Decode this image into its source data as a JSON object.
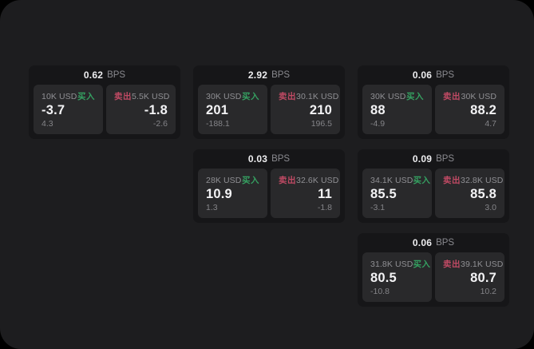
{
  "labels": {
    "bps_suffix": "BPS",
    "buy": "买入",
    "sell": "卖出"
  },
  "colors": {
    "buy": "#35a061",
    "sell": "#c04a64",
    "surface": "#1d1d1f",
    "card": "#161618",
    "panel": "#29292b"
  },
  "cards": [
    {
      "row": 1,
      "col": 1,
      "bps": "0.62",
      "buy": {
        "amount": "10K USD",
        "price": "-3.7",
        "delta": "4.3"
      },
      "sell": {
        "amount": "5.5K USD",
        "price": "-1.8",
        "delta": "-2.6"
      }
    },
    {
      "row": 1,
      "col": 2,
      "bps": "2.92",
      "buy": {
        "amount": "30K USD",
        "price": "201",
        "delta": "-188.1"
      },
      "sell": {
        "amount": "30.1K USD",
        "price": "210",
        "delta": "196.5"
      }
    },
    {
      "row": 1,
      "col": 3,
      "bps": "0.06",
      "buy": {
        "amount": "30K USD",
        "price": "88",
        "delta": "-4.9"
      },
      "sell": {
        "amount": "30K USD",
        "price": "88.2",
        "delta": "4.7"
      }
    },
    {
      "row": 2,
      "col": 2,
      "bps": "0.03",
      "buy": {
        "amount": "28K USD",
        "price": "10.9",
        "delta": "1.3"
      },
      "sell": {
        "amount": "32.6K USD",
        "price": "11",
        "delta": "-1.8"
      }
    },
    {
      "row": 2,
      "col": 3,
      "bps": "0.09",
      "buy": {
        "amount": "34.1K USD",
        "price": "85.5",
        "delta": "-3.1"
      },
      "sell": {
        "amount": "32.8K USD",
        "price": "85.8",
        "delta": "3.0"
      }
    },
    {
      "row": 3,
      "col": 3,
      "bps": "0.06",
      "buy": {
        "amount": "31.8K USD",
        "price": "80.5",
        "delta": "-10.8"
      },
      "sell": {
        "amount": "39.1K USD",
        "price": "80.7",
        "delta": "10.2"
      }
    }
  ]
}
